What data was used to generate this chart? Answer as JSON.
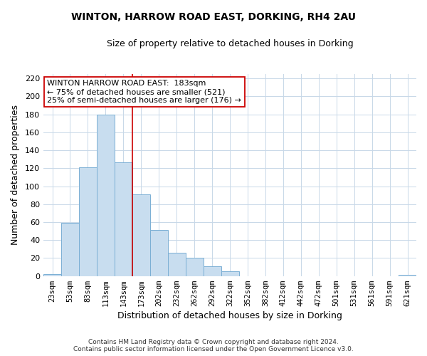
{
  "title": "WINTON, HARROW ROAD EAST, DORKING, RH4 2AU",
  "subtitle": "Size of property relative to detached houses in Dorking",
  "xlabel": "Distribution of detached houses by size in Dorking",
  "ylabel": "Number of detached properties",
  "bar_labels": [
    "23sqm",
    "53sqm",
    "83sqm",
    "113sqm",
    "143sqm",
    "173sqm",
    "202sqm",
    "232sqm",
    "262sqm",
    "292sqm",
    "322sqm",
    "352sqm",
    "382sqm",
    "412sqm",
    "442sqm",
    "472sqm",
    "501sqm",
    "531sqm",
    "561sqm",
    "591sqm",
    "621sqm"
  ],
  "bar_heights": [
    2,
    59,
    121,
    180,
    127,
    91,
    51,
    26,
    20,
    11,
    5,
    0,
    0,
    0,
    0,
    0,
    0,
    0,
    0,
    0,
    1
  ],
  "bar_color": "#c8ddef",
  "bar_edge_color": "#7aafd4",
  "ylim": [
    0,
    225
  ],
  "yticks": [
    0,
    20,
    40,
    60,
    80,
    100,
    120,
    140,
    160,
    180,
    200,
    220
  ],
  "vline_color": "#cc0000",
  "vline_x_index": 5,
  "annotation_title": "WINTON HARROW ROAD EAST:  183sqm",
  "annotation_line1": "← 75% of detached houses are smaller (521)",
  "annotation_line2": "25% of semi-detached houses are larger (176) →",
  "footer_line1": "Contains HM Land Registry data © Crown copyright and database right 2024.",
  "footer_line2": "Contains public sector information licensed under the Open Government Licence v3.0.",
  "background_color": "#ffffff",
  "grid_color": "#c8d8e8"
}
